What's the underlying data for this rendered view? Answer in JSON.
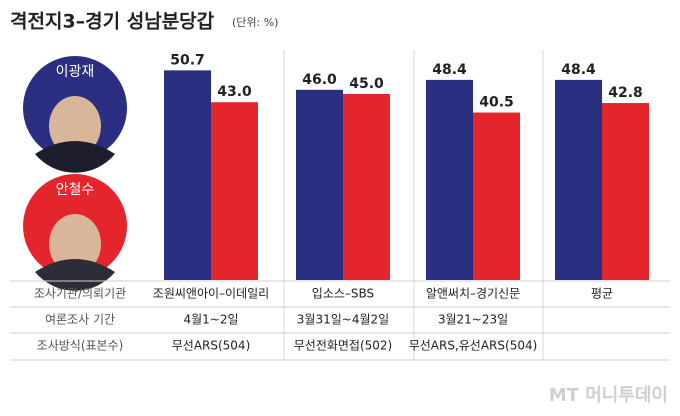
{
  "chart_data": {
    "type": "bar",
    "title": "격전지3–경기 성남분당갑",
    "subtitle": "(단위: %)",
    "categories": [
      "조원씨앤아이–이데일리",
      "입소스–SBS",
      "알앤써치–경기신문",
      "평균"
    ],
    "series": [
      {
        "name": "이광재",
        "color": "#2b2f82",
        "values": [
          50.7,
          46,
          48.4,
          48.4
        ],
        "value_labels": [
          "50.7",
          "46.0",
          "48.4",
          "48.4"
        ]
      },
      {
        "name": "안철수",
        "color": "#e4262c",
        "values": [
          43,
          45,
          40.5,
          42.8
        ],
        "value_labels": [
          "43.0",
          "45.0",
          "40.5",
          "42.8"
        ]
      }
    ],
    "ylim": [
      0,
      52
    ]
  },
  "table": {
    "row_labels": [
      "조사기관/의뢰기관",
      "여론조사 기간",
      "조사방식(표본수)"
    ],
    "rows": [
      [
        "4월1~2일",
        "3월31일~4월2일",
        "3월21~23일",
        null
      ],
      [
        "무선ARS(504)",
        "무선전화면접(502)",
        "무선ARS,유선ARS(504)",
        null
      ]
    ]
  },
  "watermark": "MT 머니투데이"
}
